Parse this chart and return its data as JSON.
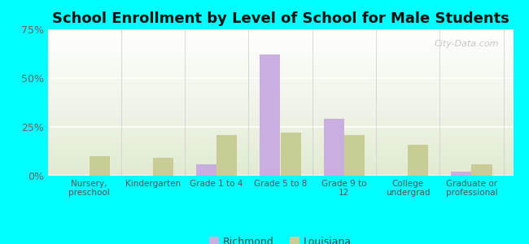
{
  "title": "School Enrollment by Level of School for Male Students",
  "categories": [
    "Nursery,\npreschool",
    "Kindergarten",
    "Grade 1 to 4",
    "Grade 5 to 8",
    "Grade 9 to\n12",
    "College\nundergrad",
    "Graduate or\nprofessional"
  ],
  "richmond": [
    0.0,
    0.0,
    0.06,
    0.62,
    0.29,
    0.0,
    0.02
  ],
  "louisiana": [
    0.1,
    0.09,
    0.21,
    0.22,
    0.21,
    0.16,
    0.06
  ],
  "richmond_color": "#c9aee0",
  "louisiana_color": "#c8cd96",
  "background_color": "#00ffff",
  "ylim": [
    0,
    0.75
  ],
  "yticks": [
    0.0,
    0.25,
    0.5,
    0.75
  ],
  "ytick_labels": [
    "0%",
    "25%",
    "50%",
    "75%"
  ],
  "bar_width": 0.32,
  "title_fontsize": 13,
  "legend_labels": [
    "Richmond",
    "Louisiana"
  ],
  "watermark": "City-Data.com"
}
